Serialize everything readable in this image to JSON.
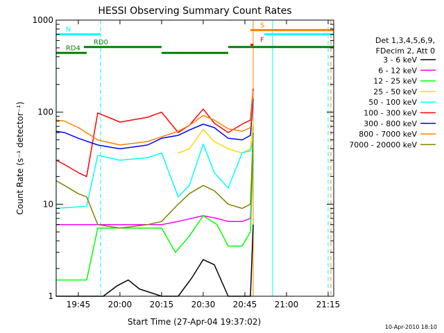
{
  "chart_data": {
    "type": "line",
    "title": "HESSI Observing Summary Count Rates",
    "xlabel": "Start Time (27-Apr-04 19:37:02)",
    "ylabel": "Count Rate (s⁻¹ detector⁻¹)",
    "yscale": "log",
    "ylim": [
      1,
      1000
    ],
    "xlim": [
      "19:37:02",
      "21:17:00"
    ],
    "xticks": [
      "19:45",
      "20:00",
      "20:15",
      "20:30",
      "20:45",
      "21:00",
      "21:15"
    ],
    "yticks": [
      "1",
      "10",
      "100",
      "1000"
    ],
    "timestamp": "10-Apr-2010 18:10",
    "legend": {
      "placement": "right",
      "header": [
        "Det 1,3,4,5,6,9,",
        "FDecim 2, Att 0"
      ]
    },
    "series": [
      {
        "name": "3 - 6 keV",
        "color": "#000000",
        "x": [
          "19:37",
          "19:43",
          "19:54",
          "19:59",
          "20:03",
          "20:07",
          "20:15",
          "20:21",
          "20:26",
          "20:30",
          "20:34",
          "20:39",
          "20:44",
          "20:47",
          "20:48"
        ],
        "values": [
          1,
          1,
          1,
          1.3,
          1.5,
          1.2,
          1,
          1,
          1.6,
          2.5,
          2.2,
          1,
          1,
          1,
          6
        ]
      },
      {
        "name": "6 - 12 keV",
        "color": "#ff00ff",
        "x": [
          "19:37",
          "19:48",
          "19:52",
          "20:00",
          "20:10",
          "20:15",
          "20:21",
          "20:30",
          "20:35",
          "20:39",
          "20:44",
          "20:47",
          "20:48"
        ],
        "values": [
          6.0,
          6.0,
          6.0,
          6.0,
          6.0,
          6.0,
          6.5,
          7.5,
          7.0,
          6.5,
          6.5,
          7.0,
          30
        ]
      },
      {
        "name": "12 - 25 keV",
        "color": "#00ff00",
        "x": [
          "19:37",
          "19:48",
          "19:52",
          "20:00",
          "20:10",
          "20:15",
          "20:20",
          "20:25",
          "20:30",
          "20:35",
          "20:39",
          "20:44",
          "20:47",
          "20:48"
        ],
        "values": [
          1.5,
          1.5,
          5.5,
          5.5,
          5.5,
          5.5,
          3.0,
          4.5,
          7.5,
          6.0,
          3.5,
          3.5,
          5.0,
          40
        ]
      },
      {
        "name": "25 - 50 keV",
        "color": "#ffd700",
        "x": [
          "19:37",
          "19:52",
          "20:15",
          "20:21",
          "20:25",
          "20:30",
          "20:34",
          "20:39",
          "20:44",
          "20:47",
          "20:48"
        ],
        "values": [
          null,
          null,
          null,
          36,
          40,
          65,
          48,
          40,
          36,
          40,
          80
        ]
      },
      {
        "name": "50 - 100 keV",
        "color": "#00ffff",
        "x": [
          "19:37",
          "19:48",
          "19:52",
          "20:00",
          "20:10",
          "20:15",
          "20:21",
          "20:25",
          "20:30",
          "20:34",
          "20:39",
          "20:44",
          "20:47",
          "20:48"
        ],
        "values": [
          9,
          9.5,
          34,
          30,
          32,
          36,
          12,
          16,
          45,
          22,
          15,
          36,
          38,
          50
        ]
      },
      {
        "name": "100 - 300 keV",
        "color": "#ff0000",
        "x": [
          "19:37",
          "19:40",
          "19:45",
          "19:48",
          "19:52",
          "20:00",
          "20:10",
          "20:15",
          "20:21",
          "20:25",
          "20:30",
          "20:34",
          "20:39",
          "20:44",
          "20:47",
          "20:48"
        ],
        "values": [
          30,
          27,
          22,
          20,
          98,
          78,
          88,
          100,
          60,
          72,
          108,
          76,
          60,
          74,
          82,
          180
        ]
      },
      {
        "name": "300 - 800 keV",
        "color": "#0000ff",
        "x": [
          "19:37",
          "19:40",
          "19:45",
          "19:52",
          "20:00",
          "20:10",
          "20:15",
          "20:21",
          "20:25",
          "20:30",
          "20:34",
          "20:39",
          "20:44",
          "20:47",
          "20:48"
        ],
        "values": [
          62,
          60,
          52,
          44,
          40,
          44,
          52,
          56,
          64,
          74,
          68,
          52,
          50,
          56,
          140
        ]
      },
      {
        "name": "800 - 7000 keV",
        "color": "#ff8000",
        "x": [
          "19:37",
          "19:40",
          "19:45",
          "19:52",
          "20:00",
          "20:10",
          "20:15",
          "20:21",
          "20:25",
          "20:30",
          "20:34",
          "20:39",
          "20:44",
          "20:47",
          "20:48"
        ],
        "values": [
          82,
          80,
          68,
          50,
          44,
          48,
          54,
          62,
          72,
          92,
          82,
          66,
          62,
          68,
          170
        ]
      },
      {
        "name": "7000 - 20000 keV",
        "color": "#808000",
        "x": [
          "19:37",
          "19:40",
          "19:45",
          "19:48",
          "19:52",
          "20:00",
          "20:10",
          "20:15",
          "20:21",
          "20:25",
          "20:30",
          "20:34",
          "20:39",
          "20:44",
          "20:47",
          "20:48"
        ],
        "values": [
          18,
          16,
          13,
          12,
          6,
          5.5,
          6,
          6.5,
          10,
          13,
          16,
          14,
          10,
          9,
          10,
          60
        ]
      }
    ],
    "flags": [
      {
        "label": "N",
        "color": "#00ffff",
        "level": 700,
        "start": "19:37",
        "end": "19:53"
      },
      {
        "label": "S",
        "color": "#ff8000",
        "level": 780,
        "start": "20:47",
        "end": "21:17"
      },
      {
        "label": "",
        "color": "#00ffff",
        "level": 700,
        "start": "20:52",
        "end": "21:17"
      },
      {
        "label": "RD0",
        "color": "#008000",
        "level": 510,
        "start": "19:47",
        "end": "20:15"
      },
      {
        "label": "RD4",
        "color": "#008000",
        "level": 440,
        "start": "19:37",
        "end": "19:48"
      },
      {
        "label": "",
        "color": "#008000",
        "level": 440,
        "start": "20:15",
        "end": "20:39"
      },
      {
        "label": "",
        "color": "#008000",
        "level": 510,
        "start": "20:39",
        "end": "21:17"
      },
      {
        "label": "F",
        "color": "#ff0000",
        "level": 540,
        "start": "20:47",
        "end": "20:48"
      }
    ],
    "markers": [
      {
        "time": "19:37",
        "color": "#00ffff"
      },
      {
        "time": "19:53",
        "color": "#00ffff",
        "dashed": true
      },
      {
        "time": "20:48",
        "color": "#ff8000"
      },
      {
        "time": "20:55",
        "color": "#00ffff"
      },
      {
        "time": "21:15",
        "color": "#00ffff",
        "dashed": true
      },
      {
        "time": "21:16",
        "color": "#ff8000",
        "dashed": true
      }
    ]
  }
}
